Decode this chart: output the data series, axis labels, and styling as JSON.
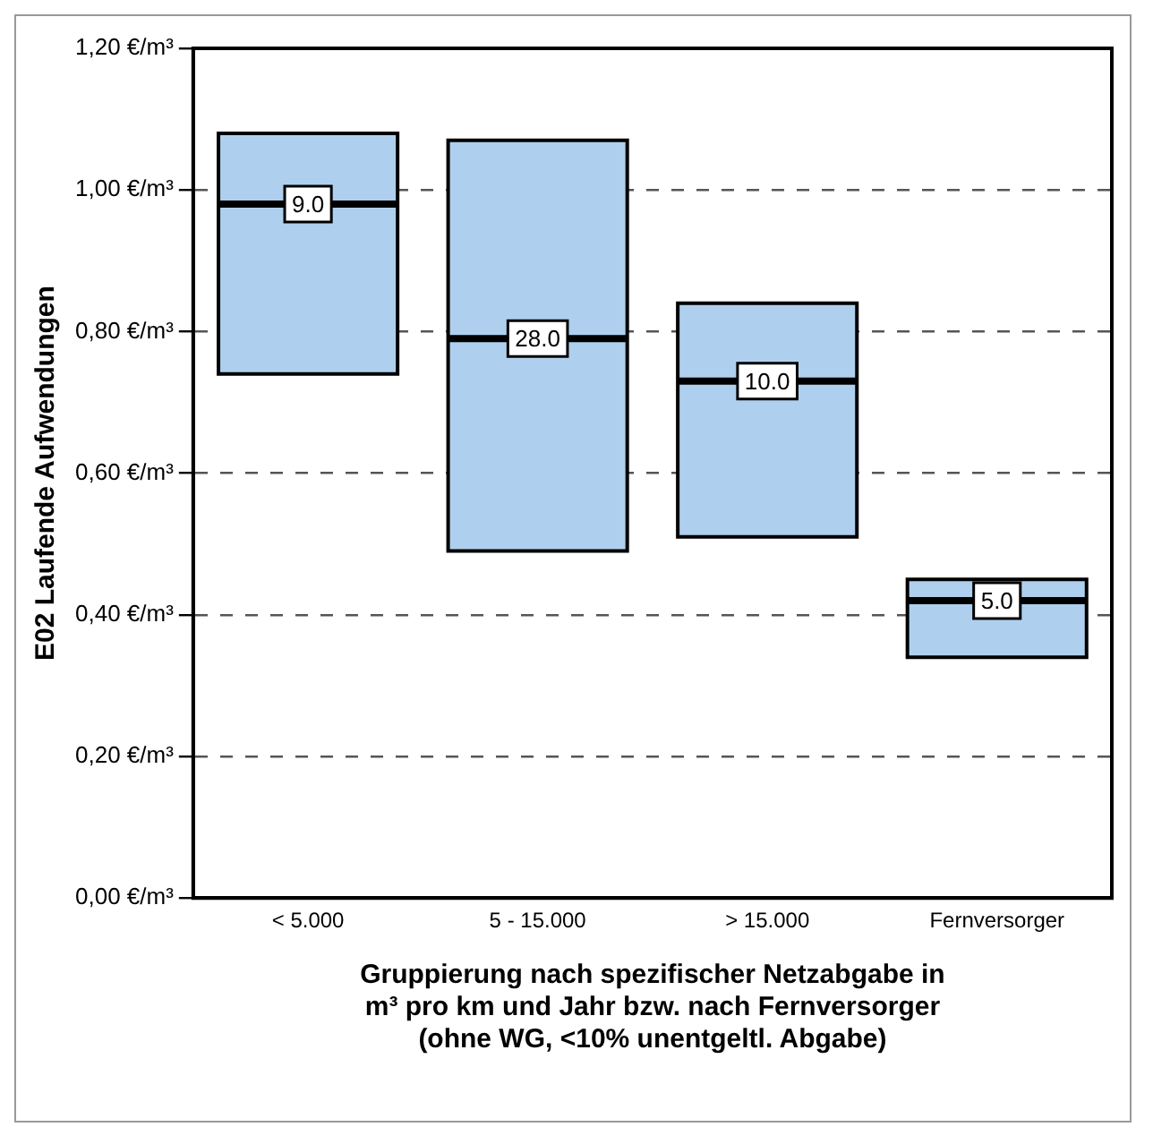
{
  "chart_data": {
    "type": "box",
    "ylabel": "E02 Laufende Aufwendungen",
    "xlabel": "Gruppierung nach spezifischer Netzabgabe in\nm³ pro km und Jahr bzw. nach Fernversorger\n(ohne WG, <10% unentgeltl. Abgabe)",
    "categories": [
      "< 5.000",
      "5 - 15.000",
      "> 15.000",
      "Fernversorger"
    ],
    "series": [
      {
        "color": "#aed0ee",
        "boxes": [
          {
            "low": 0.74,
            "q1": 0.74,
            "median": 0.98,
            "q3": 1.08,
            "high": 1.08
          },
          {
            "low": 0.49,
            "q1": 0.49,
            "median": 0.79,
            "q3": 1.07,
            "high": 1.07
          },
          {
            "low": 0.51,
            "q1": 0.51,
            "median": 0.73,
            "q3": 0.84,
            "high": 0.84
          },
          {
            "low": 0.34,
            "q1": 0.34,
            "median": 0.42,
            "q3": 0.45,
            "high": 0.45
          }
        ]
      }
    ],
    "annotations": [
      {
        "text": "9.0",
        "x": "< 5.000",
        "y": 0.98
      },
      {
        "text": "28.0",
        "x": "5 - 15.000",
        "y": 0.79
      },
      {
        "text": "10.0",
        "x": "> 15.000",
        "y": 0.73
      },
      {
        "text": "5.0",
        "x": "Fernversorger",
        "y": 0.42
      }
    ],
    "ylim": [
      0,
      1.2
    ],
    "yticks": [
      {
        "value": 0,
        "label": "0,00 €/m³"
      },
      {
        "value": 0.2,
        "label": "0,20 €/m³"
      },
      {
        "value": 0.4,
        "label": "0,40 €/m³"
      },
      {
        "value": 0.6,
        "label": "0,60 €/m³"
      },
      {
        "value": 0.8,
        "label": "0,80 €/m³"
      },
      {
        "value": 1.0,
        "label": "1,00 €/m³"
      },
      {
        "value": 1.2,
        "label": "1,20 €/m³"
      }
    ],
    "grid": "y",
    "legend": false
  }
}
